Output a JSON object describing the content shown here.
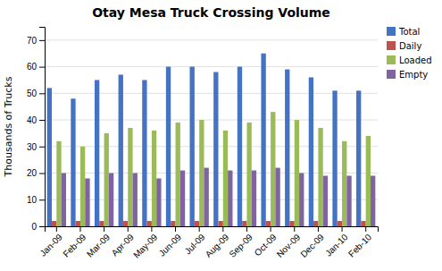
{
  "chart_data": {
    "type": "bar",
    "title": "Otay Mesa Truck Crossing Volume",
    "ylabel": "Thousands of Trucks",
    "categories": [
      "Jan-09",
      "Feb-09",
      "Mar-09",
      "Apr-09",
      "May-09",
      "Jun-09",
      "Jul-09",
      "Aug-09",
      "Sep-09",
      "Oct-09",
      "Nov-09",
      "Dec-09",
      "Jan-10",
      "Feb-10"
    ],
    "series": [
      {
        "name": "Total",
        "color": "#4472C4",
        "values": [
          52,
          48,
          55,
          57,
          55,
          60,
          60,
          58,
          60,
          65,
          59,
          56,
          51,
          51
        ]
      },
      {
        "name": "Daily",
        "color": "#C0504D",
        "values": [
          2,
          2,
          2,
          2,
          2,
          2,
          2,
          2,
          2,
          2,
          2,
          2,
          2,
          2
        ]
      },
      {
        "name": "Loaded",
        "color": "#9BBB59",
        "values": [
          32,
          30,
          35,
          37,
          36,
          39,
          40,
          36,
          39,
          43,
          40,
          37,
          32,
          34
        ]
      },
      {
        "name": "Empty",
        "color": "#8064A2",
        "values": [
          20,
          18,
          20,
          20,
          18,
          21,
          22,
          21,
          21,
          22,
          20,
          19,
          19,
          19
        ]
      }
    ],
    "ylim": [
      0,
      75
    ],
    "yticks": [
      0,
      10,
      20,
      30,
      40,
      50,
      60,
      70
    ],
    "grid": true,
    "legend": "right"
  }
}
